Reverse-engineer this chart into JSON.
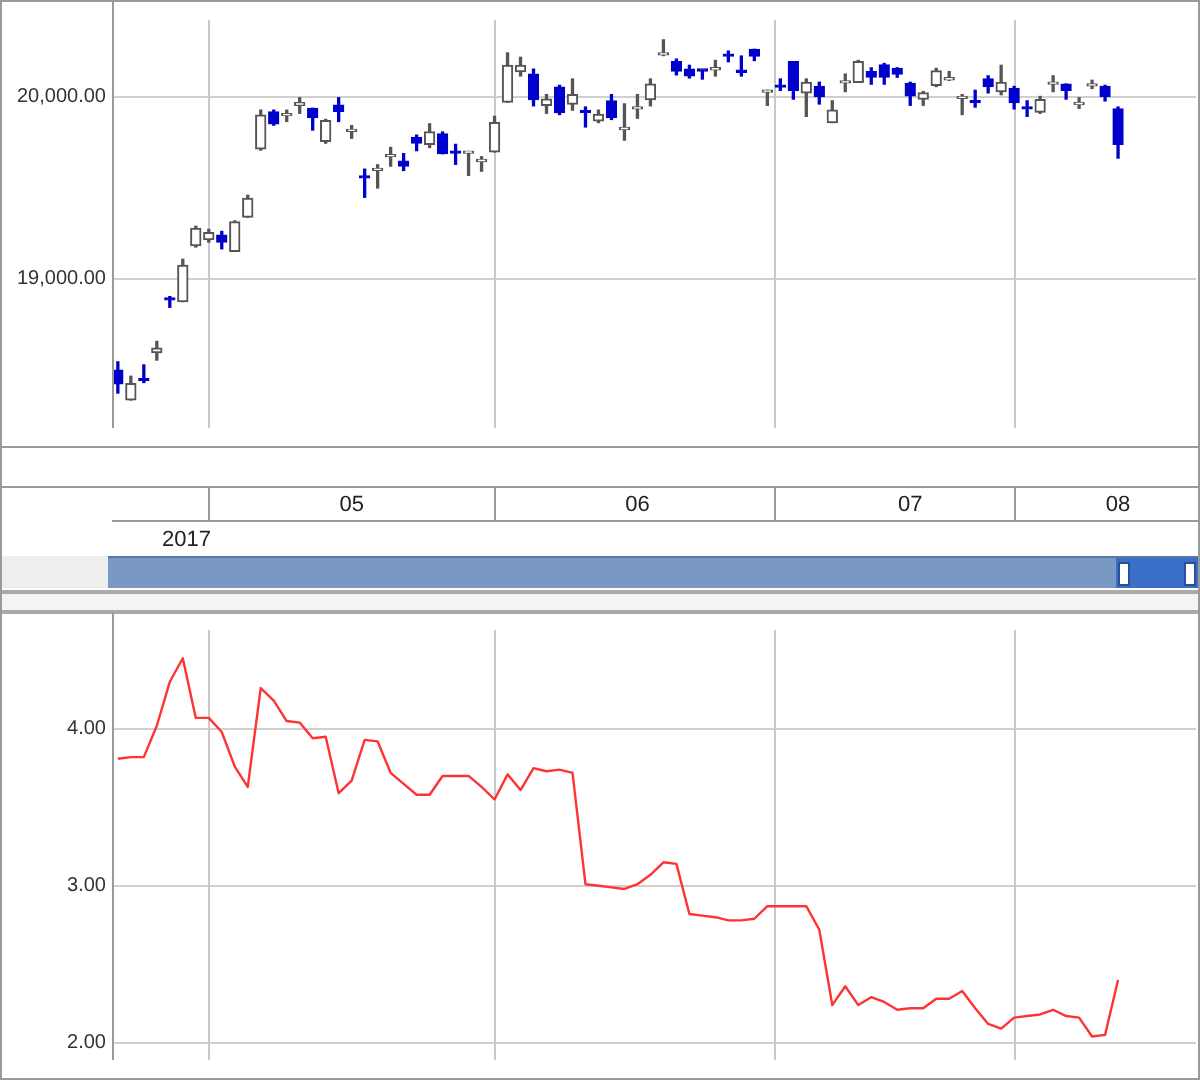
{
  "chart_data": [
    {
      "type": "candlestick",
      "categories": [
        null,
        null,
        null,
        null,
        null,
        null,
        null,
        null,
        null,
        null,
        null,
        null,
        null,
        null,
        null,
        null,
        null,
        null,
        "05",
        null,
        null,
        null,
        null,
        null,
        null,
        null,
        null,
        null,
        null,
        null,
        null,
        null,
        null,
        null,
        null,
        null,
        null,
        null,
        null,
        null,
        "06",
        null,
        null,
        null,
        null,
        null,
        null,
        null,
        null,
        null,
        null,
        null,
        null,
        null,
        null,
        null,
        null,
        null,
        null,
        null,
        null,
        "07",
        null,
        null,
        null,
        null,
        null,
        null,
        null,
        null,
        null,
        null,
        null,
        null,
        null,
        null,
        null,
        "08"
      ],
      "ohlc": [
        [
          18498,
          18543,
          18372,
          18423
        ],
        [
          18334,
          18464,
          18334,
          18423
        ],
        [
          18443,
          18526,
          18430,
          18440
        ],
        [
          18594,
          18655,
          18553,
          18618
        ],
        [
          18887,
          18901,
          18843,
          18883
        ],
        [
          18874,
          19106,
          18874,
          19072
        ],
        [
          19181,
          19287,
          19174,
          19276
        ],
        [
          19215,
          19270,
          19201,
          19253
        ],
        [
          19239,
          19259,
          19164,
          19201
        ],
        [
          19150,
          19317,
          19150,
          19311
        ],
        [
          19338,
          19457,
          19338,
          19440
        ],
        [
          19713,
          19925,
          19706,
          19898
        ],
        [
          19915,
          19925,
          19843,
          19850
        ],
        [
          19895,
          19925,
          19863,
          19898
        ],
        [
          19952,
          19993,
          19908,
          19966
        ],
        [
          19935,
          19935,
          19816,
          19884
        ],
        [
          19754,
          19874,
          19744,
          19867
        ],
        [
          19952,
          19993,
          19863,
          19918
        ],
        [
          19809,
          19840,
          19771,
          19811
        ],
        [
          19563,
          19601,
          19447,
          19553
        ],
        [
          19594,
          19625,
          19498,
          19601
        ],
        [
          19670,
          19720,
          19618,
          19673
        ],
        [
          19645,
          19686,
          19594,
          19618
        ],
        [
          19775,
          19788,
          19703,
          19744
        ],
        [
          19737,
          19850,
          19720,
          19805
        ],
        [
          19795,
          19805,
          19686,
          19686
        ],
        [
          19700,
          19737,
          19628,
          19689
        ],
        [
          19689,
          19693,
          19567,
          19693
        ],
        [
          19643,
          19669,
          19590,
          19645
        ],
        [
          19696,
          19891,
          19696,
          19857
        ],
        [
          19969,
          20239,
          19969,
          20171
        ],
        [
          20137,
          20215,
          20113,
          20171
        ],
        [
          20123,
          20150,
          19949,
          19983
        ],
        [
          19952,
          20010,
          19908,
          19986
        ],
        [
          20051,
          20061,
          19901,
          19911
        ],
        [
          19959,
          20096,
          19925,
          20010
        ],
        [
          19918,
          19942,
          19833,
          19911
        ],
        [
          19867,
          19925,
          19857,
          19901
        ],
        [
          19976,
          20010,
          19874,
          19884
        ],
        [
          19819,
          19959,
          19761,
          19826
        ],
        [
          19932,
          20010,
          19881,
          19939
        ],
        [
          19983,
          20096,
          19949,
          20068
        ],
        [
          20229,
          20311,
          20225,
          20235
        ],
        [
          20191,
          20205,
          20119,
          20140
        ],
        [
          20150,
          20171,
          20102,
          20113
        ],
        [
          20143,
          20143,
          20096,
          20140
        ],
        [
          20147,
          20198,
          20113,
          20150
        ],
        [
          20225,
          20249,
          20191,
          20222
        ],
        [
          20140,
          20222,
          20113,
          20133
        ],
        [
          20259,
          20259,
          20198,
          20222
        ],
        [
          20024,
          20034,
          19952,
          20031
        ],
        [
          20055,
          20096,
          20034,
          20051
        ],
        [
          20191,
          20191,
          19986,
          20034
        ],
        [
          20020,
          20096,
          19891,
          20078
        ],
        [
          20055,
          20078,
          19959,
          20000
        ],
        [
          19857,
          19976,
          19857,
          19925
        ],
        [
          20075,
          20123,
          20027,
          20082
        ],
        [
          20078,
          20198,
          20078,
          20191
        ],
        [
          20137,
          20157,
          20068,
          20106
        ],
        [
          20174,
          20181,
          20068,
          20106
        ],
        [
          20154,
          20157,
          20106,
          20123
        ],
        [
          20072,
          20078,
          19952,
          20003
        ],
        [
          19986,
          20027,
          19952,
          20020
        ],
        [
          20061,
          20154,
          20055,
          20140
        ],
        [
          20092,
          20137,
          20089,
          20096
        ],
        [
          19990,
          20010,
          19901,
          19997
        ],
        [
          19976,
          20034,
          19942,
          19966
        ],
        [
          20096,
          20113,
          20020,
          20055
        ],
        [
          20027,
          20171,
          20010,
          20078
        ],
        [
          20044,
          20055,
          19932,
          19966
        ],
        [
          19939,
          19976,
          19891,
          19932
        ],
        [
          19915,
          20000,
          19908,
          19983
        ],
        [
          20068,
          20113,
          20027,
          20075
        ],
        [
          20068,
          20068,
          19986,
          20034
        ],
        [
          19956,
          19993,
          19935,
          19962
        ],
        [
          20058,
          20089,
          20044,
          20065
        ],
        [
          20055,
          20061,
          19976,
          20000
        ],
        [
          19932,
          19942,
          19662,
          19737
        ]
      ],
      "colors": [
        "#0000cc",
        "#555555",
        "#0000cc",
        "#555555",
        "#0000cc",
        "#555555",
        "#555555",
        "#555555",
        "#0000cc",
        "#555555",
        "#555555",
        "#555555",
        "#0000cc",
        "#555555",
        "#555555",
        "#0000cc",
        "#555555",
        "#0000cc",
        "#555555",
        "#0000cc",
        "#555555",
        "#555555",
        "#0000cc",
        "#0000cc",
        "#555555",
        "#0000cc",
        "#0000cc",
        "#555555",
        "#555555",
        "#555555",
        "#555555",
        "#555555",
        "#0000cc",
        "#555555",
        "#0000cc",
        "#555555",
        "#0000cc",
        "#555555",
        "#0000cc",
        "#555555",
        "#555555",
        "#555555",
        "#555555",
        "#0000cc",
        "#0000cc",
        "#0000cc",
        "#555555",
        "#0000cc",
        "#0000cc",
        "#0000cc",
        "#555555",
        "#0000cc",
        "#0000cc",
        "#555555",
        "#0000cc",
        "#555555",
        "#555555",
        "#555555",
        "#0000cc",
        "#0000cc",
        "#0000cc",
        "#0000cc",
        "#555555",
        "#555555",
        "#555555",
        "#555555",
        "#0000cc",
        "#0000cc",
        "#555555",
        "#0000cc",
        "#0000cc",
        "#555555",
        "#555555",
        "#0000cc",
        "#555555",
        "#555555",
        "#0000cc",
        "#0000cc"
      ],
      "ylim": [
        18180,
        20420
      ],
      "yticks": [
        {
          "value": 19000,
          "label": "19,000.00"
        },
        {
          "value": 20000,
          "label": "20,000.00"
        }
      ],
      "annotations": [
        "2017"
      ],
      "grid": true
    },
    {
      "type": "line",
      "categories": [
        null,
        null,
        null,
        null,
        null,
        null,
        null,
        null,
        null,
        null,
        null,
        null,
        null,
        null,
        null,
        null,
        null,
        null,
        null,
        null,
        null,
        null,
        null,
        null,
        null,
        null,
        null,
        null,
        null,
        null,
        null,
        null,
        null,
        null,
        null,
        null,
        null,
        null,
        null,
        null,
        null,
        null,
        null,
        null,
        null,
        null,
        null,
        null,
        null,
        null,
        null,
        null,
        null,
        null,
        null,
        null,
        null,
        null,
        null,
        null,
        null,
        null,
        null,
        null,
        null,
        null,
        null,
        null,
        null,
        null,
        null,
        null,
        null,
        null,
        null,
        null,
        null,
        null
      ],
      "series": [
        {
          "color": "#ff3333",
          "values": [
            3.81,
            3.82,
            3.82,
            4.02,
            4.3,
            4.45,
            4.07,
            4.07,
            3.98,
            3.76,
            3.63,
            4.26,
            4.18,
            4.05,
            4.04,
            3.94,
            3.95,
            3.59,
            3.67,
            3.93,
            3.92,
            3.72,
            3.65,
            3.58,
            3.58,
            3.7,
            3.7,
            3.7,
            3.63,
            3.55,
            3.71,
            3.61,
            3.75,
            3.73,
            3.74,
            3.72,
            3.01,
            3.0,
            2.99,
            2.98,
            3.01,
            3.07,
            3.15,
            3.14,
            2.82,
            2.81,
            2.8,
            2.78,
            2.78,
            2.79,
            2.87,
            2.87,
            2.87,
            2.87,
            2.72,
            2.24,
            2.36,
            2.24,
            2.29,
            2.26,
            2.21,
            2.22,
            2.22,
            2.28,
            2.28,
            2.33,
            2.22,
            2.12,
            2.09,
            2.16,
            2.17,
            2.18,
            2.21,
            2.17,
            2.16,
            2.04,
            2.05,
            2.4
          ]
        }
      ],
      "ylim": [
        1.89,
        4.63
      ],
      "yticks": [
        {
          "value": 2,
          "label": "2.00"
        },
        {
          "value": 3,
          "label": "3.00"
        },
        {
          "value": 4,
          "label": "4.00"
        }
      ],
      "tick_labels": "y",
      "grid": true
    }
  ]
}
